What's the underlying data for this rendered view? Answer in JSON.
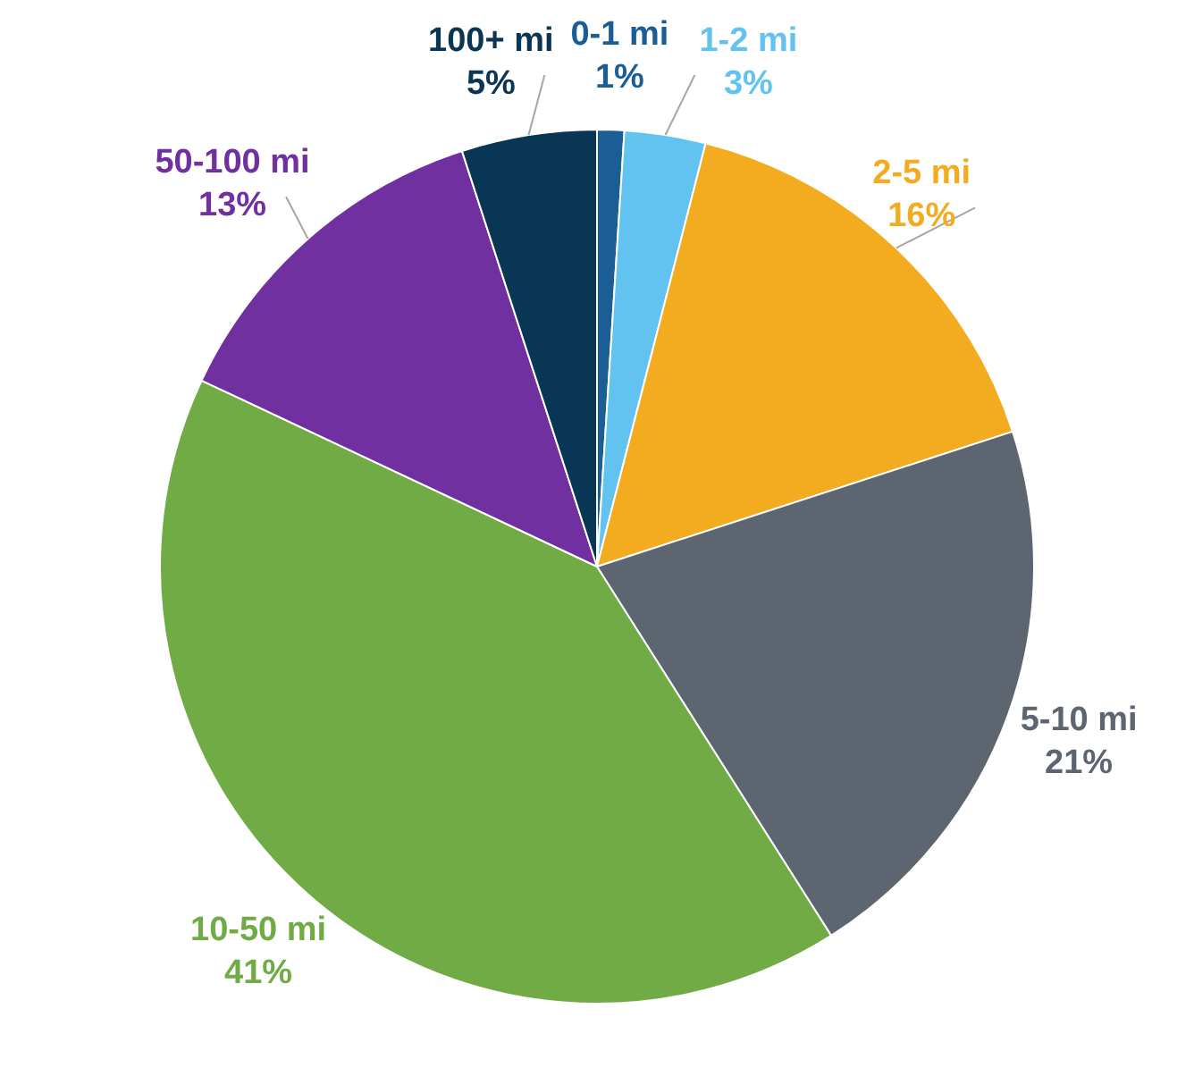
{
  "chart_data": {
    "type": "pie",
    "categories": [
      "0-1 mi",
      "1-2 mi",
      "2-5 mi",
      "5-10 mi",
      "10-50 mi",
      "50-100 mi",
      "100+ mi"
    ],
    "values": [
      1,
      3,
      16,
      21,
      41,
      13,
      5
    ],
    "colors": [
      "#1b5e96",
      "#63c3f0",
      "#f3ac1f",
      "#5d6670",
      "#70ab46",
      "#7030a0",
      "#0a3656"
    ],
    "value_labels": [
      "1%",
      "3%",
      "16%",
      "21%",
      "41%",
      "13%",
      "5%"
    ],
    "legend": false
  }
}
